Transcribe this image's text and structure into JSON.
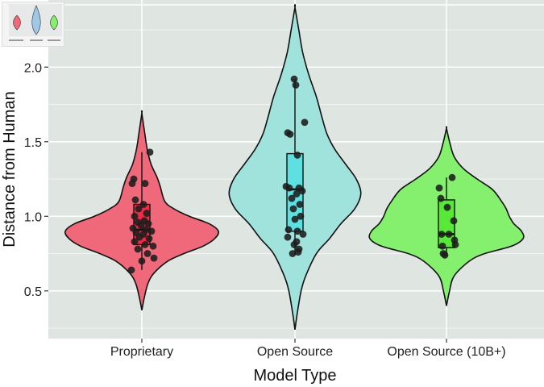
{
  "chart_data": {
    "type": "violin",
    "xlabel": "Model Type",
    "ylabel": "Distance from Human",
    "categories": [
      "Proprietary",
      "Open Source",
      "Open Source (10B+)"
    ],
    "yticks": [
      "0.5",
      "1.0",
      "1.5",
      "2.0"
    ],
    "ylim": [
      0.18,
      2.45
    ],
    "grid": true,
    "colors": {
      "Proprietary": "#f0697a",
      "Open Source": "#9fe3dc",
      "Open Source (10B+)": "#85f06e"
    },
    "box_colors": {
      "Proprietary": "#f22a45",
      "Open Source": "#5ee0e0",
      "Open Source (10B+)": "#58e838"
    },
    "violins": [
      {
        "category": "Proprietary",
        "min": 0.37,
        "max": 1.69,
        "density": [
          [
            0.37,
            0.0
          ],
          [
            0.45,
            0.03
          ],
          [
            0.55,
            0.08
          ],
          [
            0.62,
            0.16
          ],
          [
            0.7,
            0.34
          ],
          [
            0.75,
            0.55
          ],
          [
            0.8,
            0.8
          ],
          [
            0.85,
            0.95
          ],
          [
            0.9,
            1.0
          ],
          [
            0.95,
            0.88
          ],
          [
            1.0,
            0.62
          ],
          [
            1.05,
            0.42
          ],
          [
            1.1,
            0.3
          ],
          [
            1.2,
            0.24
          ],
          [
            1.26,
            0.2
          ],
          [
            1.35,
            0.12
          ],
          [
            1.45,
            0.07
          ],
          [
            1.55,
            0.04
          ],
          [
            1.69,
            0.0
          ]
        ]
      },
      {
        "category": "Open Source",
        "min": 0.24,
        "max": 2.4,
        "density": [
          [
            0.24,
            0.0
          ],
          [
            0.35,
            0.03
          ],
          [
            0.5,
            0.08
          ],
          [
            0.6,
            0.14
          ],
          [
            0.75,
            0.28
          ],
          [
            0.85,
            0.45
          ],
          [
            0.95,
            0.6
          ],
          [
            1.05,
            0.78
          ],
          [
            1.15,
            0.86
          ],
          [
            1.25,
            0.8
          ],
          [
            1.35,
            0.66
          ],
          [
            1.45,
            0.52
          ],
          [
            1.55,
            0.42
          ],
          [
            1.65,
            0.36
          ],
          [
            1.8,
            0.28
          ],
          [
            1.95,
            0.18
          ],
          [
            2.1,
            0.1
          ],
          [
            2.25,
            0.05
          ],
          [
            2.4,
            0.0
          ]
        ]
      },
      {
        "category": "Open Source (10B+)",
        "min": 0.4,
        "max": 1.59,
        "density": [
          [
            0.4,
            0.0
          ],
          [
            0.5,
            0.04
          ],
          [
            0.6,
            0.1
          ],
          [
            0.7,
            0.3
          ],
          [
            0.75,
            0.5
          ],
          [
            0.8,
            0.85
          ],
          [
            0.85,
            1.0
          ],
          [
            0.9,
            0.98
          ],
          [
            0.95,
            0.88
          ],
          [
            1.0,
            0.82
          ],
          [
            1.05,
            0.78
          ],
          [
            1.1,
            0.72
          ],
          [
            1.18,
            0.6
          ],
          [
            1.25,
            0.4
          ],
          [
            1.32,
            0.22
          ],
          [
            1.4,
            0.1
          ],
          [
            1.5,
            0.04
          ],
          [
            1.59,
            0.0
          ]
        ]
      }
    ],
    "boxes": [
      {
        "category": "Proprietary",
        "whisker_low": 0.64,
        "q1": 0.81,
        "median": 0.91,
        "q3": 1.08,
        "whisker_high": 1.43
      },
      {
        "category": "Open Source",
        "whisker_low": 0.74,
        "q1": 0.9,
        "median": 1.18,
        "q3": 1.42,
        "whisker_high": 1.92
      },
      {
        "category": "Open Source (10B+)",
        "whisker_low": 0.73,
        "q1": 0.79,
        "median": 0.88,
        "q3": 1.11,
        "whisker_high": 1.26
      }
    ],
    "points": [
      {
        "category": "Proprietary",
        "values": [
          [
            -0.1,
            1.25
          ],
          [
            -0.12,
            1.22
          ],
          [
            0.1,
            1.43
          ],
          [
            0.04,
            1.22
          ],
          [
            -0.08,
            1.11
          ],
          [
            0.02,
            1.08
          ],
          [
            -0.04,
            1.05
          ],
          [
            0.06,
            1.02
          ],
          [
            -0.09,
            1.0
          ],
          [
            0.03,
            0.97
          ],
          [
            -0.05,
            0.96
          ],
          [
            0.08,
            0.95
          ],
          [
            -0.01,
            0.94
          ],
          [
            -0.11,
            0.92
          ],
          [
            0.05,
            0.91
          ],
          [
            0.12,
            0.9
          ],
          [
            -0.07,
            0.89
          ],
          [
            0.02,
            0.88
          ],
          [
            -0.03,
            0.86
          ],
          [
            0.09,
            0.85
          ],
          [
            -0.09,
            0.83
          ],
          [
            0.04,
            0.81
          ],
          [
            0.14,
            0.8
          ],
          [
            -0.05,
            0.78
          ],
          [
            0.07,
            0.75
          ],
          [
            0.15,
            0.72
          ],
          [
            0.0,
            0.7
          ],
          [
            -0.13,
            0.64
          ]
        ]
      },
      {
        "category": "Open Source",
        "values": [
          [
            -0.01,
            1.92
          ],
          [
            0.01,
            1.88
          ],
          [
            -0.09,
            1.56
          ],
          [
            -0.06,
            1.55
          ],
          [
            0.12,
            1.63
          ],
          [
            0.03,
            1.41
          ],
          [
            -0.11,
            1.2
          ],
          [
            -0.07,
            1.19
          ],
          [
            0.05,
            1.19
          ],
          [
            0.09,
            1.17
          ],
          [
            0.02,
            1.15
          ],
          [
            -0.04,
            1.12
          ],
          [
            0.06,
            1.08
          ],
          [
            -0.02,
            1.05
          ],
          [
            0.07,
            1.0
          ],
          [
            0.0,
            0.98
          ],
          [
            -0.08,
            0.91
          ],
          [
            0.03,
            0.9
          ],
          [
            0.1,
            0.88
          ],
          [
            -0.09,
            0.86
          ],
          [
            0.02,
            0.83
          ],
          [
            -0.01,
            0.81
          ],
          [
            0.05,
            0.78
          ],
          [
            0.04,
            0.76
          ],
          [
            -0.03,
            0.75
          ]
        ]
      },
      {
        "category": "Open Source (10B+)",
        "values": [
          [
            -0.09,
            1.19
          ],
          [
            0.07,
            1.26
          ],
          [
            -0.07,
            1.12
          ],
          [
            0.01,
            1.06
          ],
          [
            0.09,
            0.97
          ],
          [
            -0.06,
            0.88
          ],
          [
            0.03,
            0.88
          ],
          [
            0.1,
            0.84
          ],
          [
            -0.05,
            0.8
          ],
          [
            0.11,
            0.81
          ],
          [
            -0.04,
            0.75
          ],
          [
            -0.02,
            0.74
          ]
        ]
      }
    ]
  }
}
